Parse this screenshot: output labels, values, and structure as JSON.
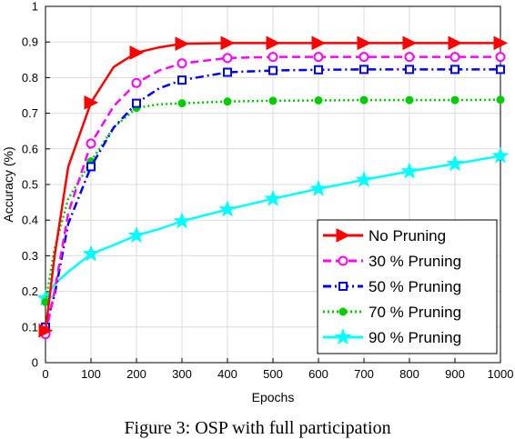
{
  "chart_data": {
    "type": "line",
    "xlabel": "Epochs",
    "ylabel": "Accuracy (%)",
    "xlim": [
      0,
      1000
    ],
    "ylim": [
      0,
      1
    ],
    "x_ticks": [
      "0",
      "100",
      "200",
      "300",
      "400",
      "500",
      "600",
      "700",
      "800",
      "900",
      "1000"
    ],
    "y_ticks": [
      "0",
      "0.1",
      "0.2",
      "0.3",
      "0.4",
      "0.5",
      "0.6",
      "0.7",
      "0.8",
      "0.9",
      "1"
    ],
    "grid": true,
    "legend_position": "bottom-right",
    "series": [
      {
        "name": "No Pruning",
        "color": "#ff0000",
        "dash": "solid",
        "marker": "triangle-right",
        "x": [
          0,
          20,
          50,
          100,
          150,
          200,
          250,
          300,
          400,
          500,
          600,
          700,
          800,
          900,
          1000
        ],
        "y": [
          0.09,
          0.3,
          0.55,
          0.73,
          0.83,
          0.87,
          0.885,
          0.895,
          0.897,
          0.897,
          0.897,
          0.897,
          0.897,
          0.897,
          0.897
        ]
      },
      {
        "name": "30 % Pruning",
        "color": "#ff00ff",
        "dash": "dash",
        "marker": "circle",
        "x": [
          0,
          20,
          50,
          100,
          150,
          200,
          250,
          300,
          400,
          500,
          600,
          700,
          800,
          900,
          1000
        ],
        "y": [
          0.08,
          0.2,
          0.42,
          0.615,
          0.72,
          0.785,
          0.82,
          0.84,
          0.855,
          0.858,
          0.858,
          0.858,
          0.858,
          0.858,
          0.858
        ]
      },
      {
        "name": "50 % Pruning",
        "color": "#0000ff",
        "dash": "dashdot",
        "marker": "square",
        "x": [
          0,
          20,
          50,
          100,
          150,
          200,
          250,
          300,
          400,
          500,
          600,
          700,
          800,
          900,
          1000
        ],
        "y": [
          0.1,
          0.19,
          0.39,
          0.55,
          0.66,
          0.728,
          0.77,
          0.793,
          0.815,
          0.82,
          0.822,
          0.823,
          0.823,
          0.823,
          0.823
        ]
      },
      {
        "name": "70 % Pruning",
        "color": "#00cc00",
        "dash": "dot",
        "marker": "dot",
        "x": [
          0,
          20,
          50,
          100,
          150,
          200,
          250,
          300,
          400,
          500,
          600,
          700,
          800,
          900,
          1000
        ],
        "y": [
          0.17,
          0.32,
          0.46,
          0.565,
          0.66,
          0.715,
          0.725,
          0.728,
          0.733,
          0.735,
          0.736,
          0.737,
          0.737,
          0.737,
          0.738
        ]
      },
      {
        "name": "90 % Pruning",
        "color": "#00ffff",
        "dash": "solid",
        "marker": "star",
        "x": [
          0,
          20,
          50,
          100,
          150,
          200,
          250,
          300,
          400,
          500,
          600,
          700,
          800,
          900,
          1000
        ],
        "y": [
          0.18,
          0.22,
          0.255,
          0.305,
          0.33,
          0.357,
          0.375,
          0.397,
          0.43,
          0.46,
          0.488,
          0.513,
          0.537,
          0.558,
          0.58
        ]
      }
    ]
  },
  "caption": "Figure 3: OSP with full participation"
}
